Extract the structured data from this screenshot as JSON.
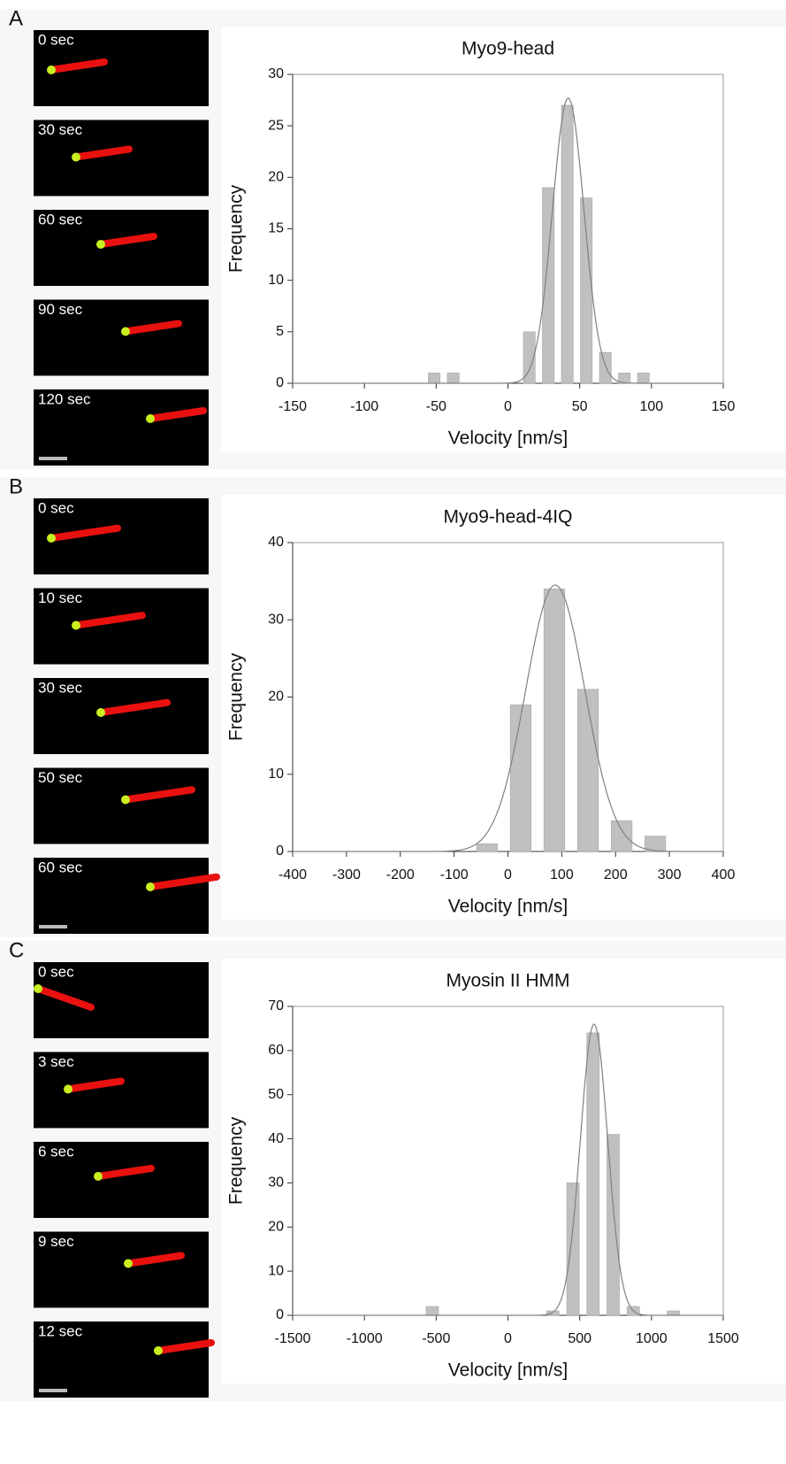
{
  "panels": [
    {
      "label": "A",
      "frames": [
        "0 sec",
        "30 sec",
        "60 sec",
        "90 sec",
        "120 sec"
      ]
    },
    {
      "label": "B",
      "frames": [
        "0 sec",
        "10 sec",
        "30 sec",
        "50 sec",
        "60 sec"
      ]
    },
    {
      "label": "C",
      "frames": [
        "0 sec",
        "3 sec",
        "6 sec",
        "9 sec",
        "12 sec"
      ]
    }
  ],
  "chart_data": [
    {
      "type": "histogram",
      "title": "Myo9-head",
      "xlabel": "Velocity [nm/s]",
      "ylabel": "Frequency",
      "bins": [
        -58,
        -44.75,
        -31.5,
        -18.25,
        -5,
        8.25,
        21.5,
        34.75,
        48,
        61.25,
        74.5,
        87.75,
        101
      ],
      "values": [
        1,
        1,
        0,
        0,
        0,
        5,
        19,
        27,
        18,
        3,
        1,
        1
      ],
      "color": "#c0c0c0",
      "fit": {
        "mean": 42,
        "sd": 11,
        "peak": 27.7
      },
      "fit_color": "#808080",
      "xlim": [
        -150,
        150
      ],
      "xticks": [
        -150,
        -100,
        -50,
        0,
        50,
        100,
        150
      ],
      "ylim": [
        0,
        30
      ],
      "yticks": [
        0,
        5,
        10,
        15,
        20,
        25,
        30
      ]
    },
    {
      "type": "histogram",
      "title": "Myo9-head-4IQ",
      "xlabel": "Velocity [nm/s]",
      "ylabel": "Frequency",
      "bins": [
        -70,
        -7.5,
        55,
        117.5,
        180,
        242.5,
        305
      ],
      "values": [
        1,
        19,
        34,
        21,
        4,
        2
      ],
      "color": "#c0c0c0",
      "fit": {
        "mean": 88,
        "sd": 55,
        "peak": 34.5
      },
      "fit_color": "#808080",
      "xlim": [
        -400,
        400
      ],
      "xticks": [
        -400,
        -300,
        -200,
        -100,
        0,
        100,
        200,
        300,
        400
      ],
      "ylim": [
        0,
        40
      ],
      "yticks": [
        0,
        10,
        20,
        30,
        40
      ]
    },
    {
      "type": "histogram",
      "title": "Myosin II HMM",
      "xlabel": "Velocity [nm/s]",
      "ylabel": "Frequency",
      "bins": [
        -597,
        -457,
        -317,
        -177,
        -37,
        103,
        243,
        383,
        523,
        663,
        803,
        943,
        1083,
        1223
      ],
      "values": [
        2,
        0,
        0,
        0,
        0,
        0,
        1,
        30,
        64,
        41,
        2,
        0,
        1
      ],
      "color": "#c0c0c0",
      "fit": {
        "mean": 600,
        "sd": 95,
        "peak": 66
      },
      "fit_color": "#808080",
      "xlim": [
        -1500,
        1500
      ],
      "xticks": [
        -1500,
        -1000,
        -500,
        0,
        500,
        1000,
        1500
      ],
      "ylim": [
        0,
        70
      ],
      "yticks": [
        0,
        10,
        20,
        30,
        40,
        50,
        60,
        70
      ]
    }
  ]
}
